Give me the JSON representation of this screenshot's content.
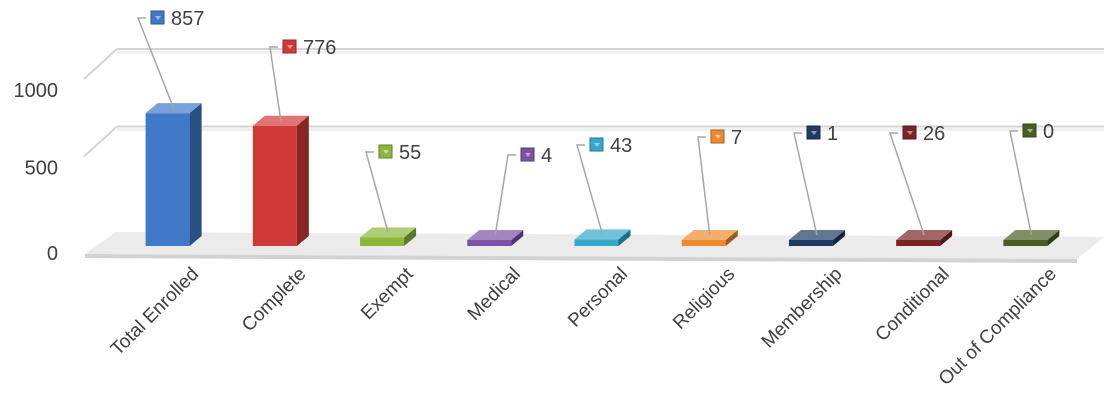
{
  "chart_data": {
    "type": "bar",
    "categories": [
      "Total Enrolled",
      "Complete",
      "Exempt",
      "Medical",
      "Personal",
      "Religious",
      "Membership",
      "Conditional",
      "Out of Compliance"
    ],
    "values": [
      857,
      776,
      55,
      4,
      43,
      7,
      1,
      26,
      0
    ],
    "colors": [
      "#3f79c8",
      "#cf3a38",
      "#8cb83a",
      "#7a52a8",
      "#35a8cc",
      "#ec8b2c",
      "#1d3b63",
      "#7c2325",
      "#4a5e22"
    ],
    "y_ticks": [
      "0",
      "500",
      "1000"
    ],
    "ylim": [
      0,
      1000
    ],
    "grid": true,
    "legend": "none",
    "data_labels": true,
    "style": "3d"
  }
}
